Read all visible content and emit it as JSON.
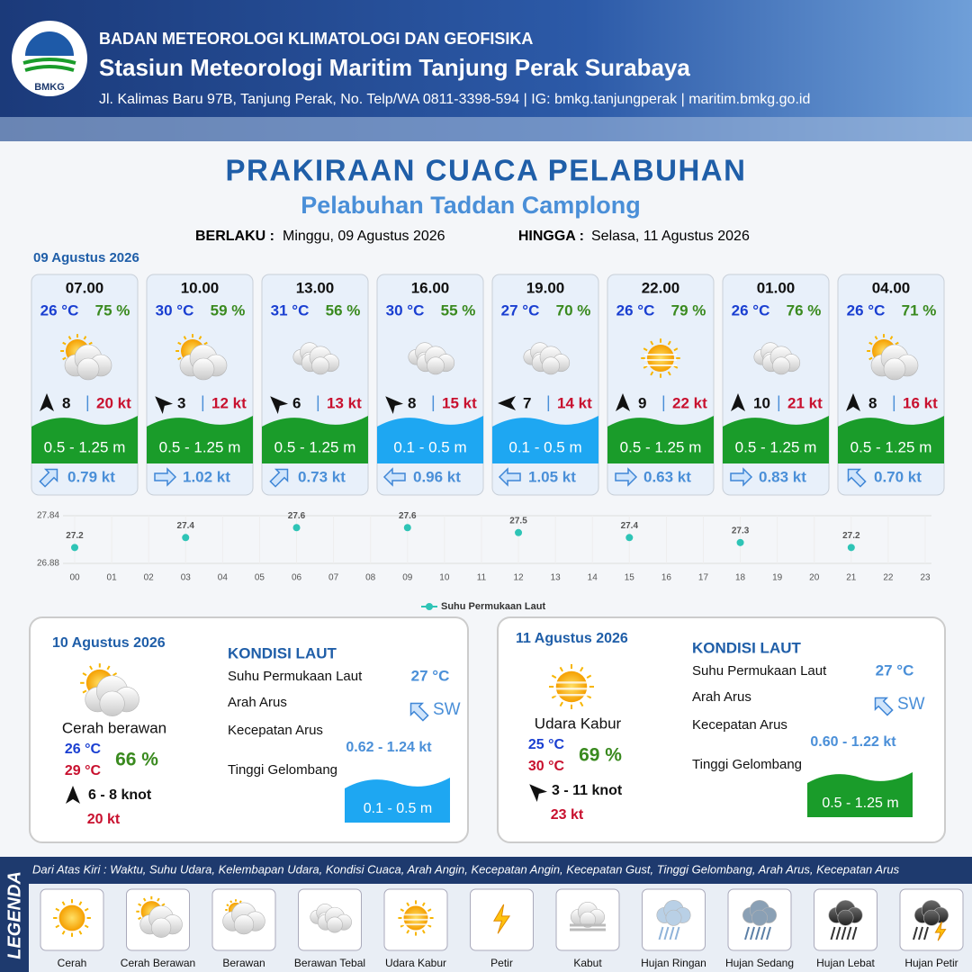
{
  "header": {
    "logo": "BMKG",
    "org": "BADAN METEOROLOGI KLIMATOLOGI DAN GEOFISIKA",
    "station": "Stasiun Meteorologi Maritim Tanjung Perak Surabaya",
    "address": "Jl. Kalimas Baru 97B, Tanjung Perak, No. Telp/WA 0811-3398-594 | IG: bmkg.tanjungperak | maritim.bmkg.go.id"
  },
  "title": "PRAKIRAAN CUACA PELABUHAN",
  "subtitle": "Pelabuhan Taddan Camplong",
  "valid_from_label": "BERLAKU :",
  "valid_from": "Minggu, 09 Agustus 2026",
  "valid_to_label": "HINGGA :",
  "valid_to": "Selasa, 11 Agustus 2026",
  "day1_date": "09 Agustus 2026",
  "slots": [
    {
      "time": "07.00",
      "temp": "26 °C",
      "humidity": "75 %",
      "wind": "8",
      "gust": "20 kt",
      "wave": "0.5 - 1.25 m",
      "current": "0.79 kt"
    },
    {
      "time": "10.00",
      "temp": "30 °C",
      "humidity": "59 %",
      "wind": "3",
      "gust": "12 kt",
      "wave": "0.5 - 1.25 m",
      "current": "1.02 kt"
    },
    {
      "time": "13.00",
      "temp": "31 °C",
      "humidity": "56 %",
      "wind": "6",
      "gust": "13 kt",
      "wave": "0.5 - 1.25 m",
      "current": "0.73 kt"
    },
    {
      "time": "16.00",
      "temp": "30 °C",
      "humidity": "55 %",
      "wind": "8",
      "gust": "15 kt",
      "wave": "0.1 - 0.5 m",
      "current": "0.96 kt"
    },
    {
      "time": "19.00",
      "temp": "27 °C",
      "humidity": "70 %",
      "wind": "7",
      "gust": "14 kt",
      "wave": "0.1 - 0.5 m",
      "current": "1.05 kt"
    },
    {
      "time": "22.00",
      "temp": "26 °C",
      "humidity": "79 %",
      "wind": "9",
      "gust": "22 kt",
      "wave": "0.5 - 1.25 m",
      "current": "0.63 kt"
    },
    {
      "time": "01.00",
      "temp": "26 °C",
      "humidity": "76 %",
      "wind": "10",
      "gust": "21 kt",
      "wave": "0.5 - 1.25 m",
      "current": "0.83 kt"
    },
    {
      "time": "04.00",
      "temp": "26 °C",
      "humidity": "71 %",
      "wind": "8",
      "gust": "16 kt",
      "wave": "0.5 - 1.25 m",
      "current": "0.70 kt"
    }
  ],
  "chart_data": {
    "type": "scatter",
    "legend": "Suhu Permukaan Laut",
    "color": "#2ec4b6",
    "x": [
      0,
      3,
      6,
      9,
      12,
      15,
      18,
      21
    ],
    "values": [
      27.2,
      27.4,
      27.6,
      27.6,
      27.5,
      27.4,
      27.3,
      27.2
    ],
    "xlim": [
      0,
      23
    ],
    "xticks": [
      {
        "value": 0,
        "label": "00"
      },
      {
        "value": 1,
        "label": "01"
      },
      {
        "value": 2,
        "label": "02"
      },
      {
        "value": 3,
        "label": "03"
      },
      {
        "value": 4,
        "label": "04"
      },
      {
        "value": 5,
        "label": "05"
      },
      {
        "value": 6,
        "label": "06"
      },
      {
        "value": 7,
        "label": "07"
      },
      {
        "value": 8,
        "label": "08"
      },
      {
        "value": 9,
        "label": "09"
      },
      10,
      11,
      12,
      13,
      14,
      15,
      16,
      17,
      18,
      19,
      20,
      21,
      22,
      23
    ],
    "ylim": [
      26.88,
      27.84
    ],
    "yticks": [
      26.88,
      27.84
    ],
    "grid": true
  },
  "days": [
    {
      "date": "10 Agustus 2026",
      "condition": "Cerah berawan",
      "tmin": "26 °C",
      "tmax": "29 °C",
      "humidity": "66 %",
      "wind": "6 - 8 knot",
      "gust": "20 kt",
      "sea_title": "KONDISI LAUT",
      "sst_label": "Suhu Permukaan Laut",
      "sst": "27 °C",
      "dir_label": "Arah Arus",
      "dir": "SW",
      "speed_label": "Kecepatan Arus",
      "speed": "0.62 - 1.24 kt",
      "wave_label": "Tinggi Gelombang",
      "wave": "0.1 - 0.5 m"
    },
    {
      "date": "11 Agustus 2026",
      "condition": "Udara Kabur",
      "tmin": "25 °C",
      "tmax": "30 °C",
      "humidity": "69 %",
      "wind": "3 - 11 knot",
      "gust": "23 kt",
      "sea_title": "KONDISI LAUT",
      "sst_label": "Suhu Permukaan Laut",
      "sst": "27 °C",
      "dir_label": "Arah Arus",
      "dir": "SW",
      "speed_label": "Kecepatan Arus",
      "speed": "0.60 - 1.22 kt",
      "wave_label": "Tinggi Gelombang",
      "wave": "0.5 - 1.25 m"
    }
  ],
  "legend": {
    "title": "LEGENDA",
    "description": "Dari Atas Kiri : Waktu, Suhu Udara, Kelembapan Udara, Kondisi Cuaca, Arah Angin, Kecepatan Angin, Kecepatan Gust, Tinggi Gelombang, Arah Arus, Kecepatan Arus",
    "items": [
      "Cerah",
      "Cerah Berawan",
      "Berawan",
      "Berawan Tebal",
      "Udara Kabur",
      "Petir",
      "Kabut",
      "Hujan Ringan",
      "Hujan Sedang",
      "Hujan Lebat",
      "Hujan Petir"
    ]
  }
}
